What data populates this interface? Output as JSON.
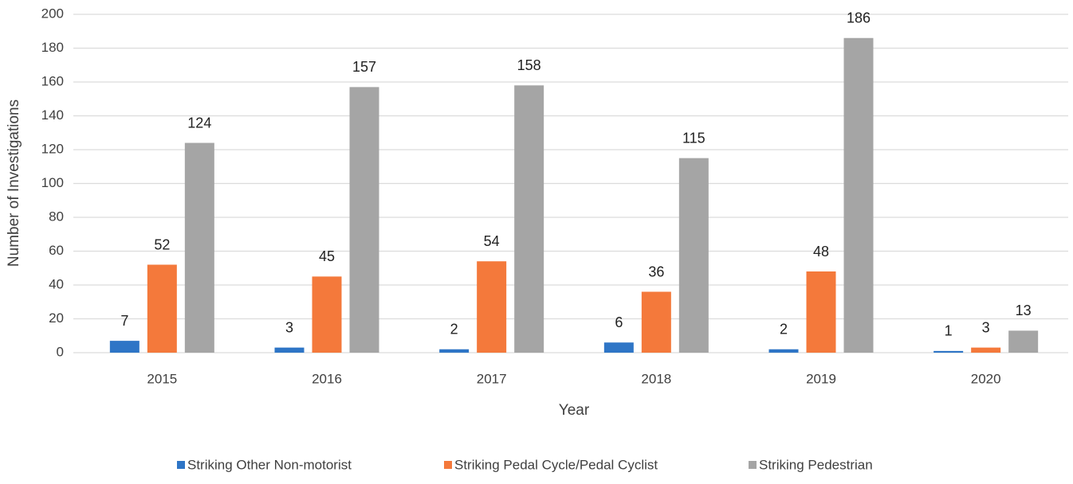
{
  "chart_data": {
    "type": "bar",
    "x_label": "Year",
    "y_label": "Number of Investigations",
    "categories": [
      "2015",
      "2016",
      "2017",
      "2018",
      "2019",
      "2020"
    ],
    "series": [
      {
        "name": "Striking Other Non-motorist",
        "color": "#2e75c6",
        "values": [
          7,
          3,
          2,
          6,
          2,
          1
        ]
      },
      {
        "name": "Striking Pedal Cycle/Pedal Cyclist",
        "color": "#f4793b",
        "values": [
          52,
          45,
          54,
          36,
          48,
          3
        ]
      },
      {
        "name": "Striking Pedestrian",
        "color": "#a5a5a5",
        "values": [
          124,
          157,
          158,
          115,
          186,
          13
        ]
      }
    ],
    "ylim": [
      0,
      200
    ],
    "yticks": [
      0,
      20,
      40,
      60,
      80,
      100,
      120,
      140,
      160,
      180,
      200
    ],
    "grid": true,
    "legend": "bottom"
  }
}
